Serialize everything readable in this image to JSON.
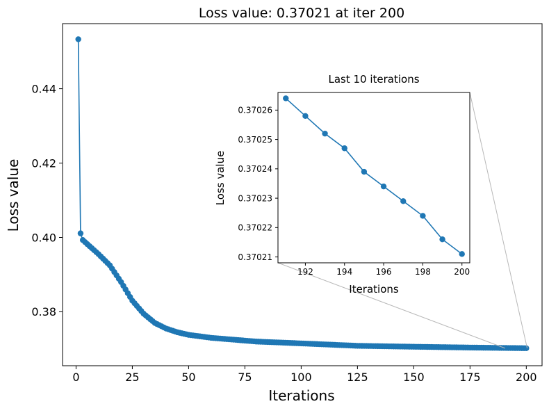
{
  "chart_data": [
    {
      "type": "line",
      "title": "Loss value: 0.37021 at iter 200",
      "xlabel": "Iterations",
      "ylabel": "Loss value",
      "xlim": [
        -6,
        207
      ],
      "ylim": [
        0.3655,
        0.4575
      ],
      "xticks": [
        0,
        25,
        50,
        75,
        100,
        125,
        150,
        175,
        200
      ],
      "yticks": [
        0.38,
        0.4,
        0.42,
        0.44
      ],
      "ytick_labels": [
        "0.38",
        "0.40",
        "0.42",
        "0.44"
      ],
      "color": "#1f77b4",
      "marker": "circle",
      "grid": false,
      "key_points": [
        [
          1,
          0.4533
        ],
        [
          2,
          0.4011
        ],
        [
          3,
          0.3993
        ],
        [
          5,
          0.3982
        ],
        [
          10,
          0.3955
        ],
        [
          15,
          0.3925
        ],
        [
          20,
          0.388
        ],
        [
          25,
          0.383
        ],
        [
          30,
          0.3795
        ],
        [
          35,
          0.377
        ],
        [
          40,
          0.3755
        ],
        [
          45,
          0.3745
        ],
        [
          50,
          0.3738
        ],
        [
          60,
          0.373
        ],
        [
          70,
          0.3725
        ],
        [
          80,
          0.372
        ],
        [
          100,
          0.3715
        ],
        [
          125,
          0.37085
        ],
        [
          150,
          0.3706
        ],
        [
          175,
          0.37038
        ],
        [
          200,
          0.37021
        ]
      ]
    },
    {
      "type": "line",
      "title": "Last 10 iterations",
      "xlabel": "Iterations",
      "ylabel": "Loss value",
      "xlim": [
        190.6,
        200.4
      ],
      "ylim": [
        0.370208,
        0.370266
      ],
      "xticks": [
        192,
        194,
        196,
        198,
        200
      ],
      "yticks": [
        0.37021,
        0.37022,
        0.37023,
        0.37024,
        0.37025,
        0.37026
      ],
      "ytick_labels": [
        "0.37021",
        "0.37022",
        "0.37023",
        "0.37024",
        "0.37025",
        "0.37026"
      ],
      "color": "#1f77b4",
      "marker": "circle",
      "x": [
        191,
        192,
        193,
        194,
        195,
        196,
        197,
        198,
        199,
        200
      ],
      "values": [
        0.370264,
        0.370258,
        0.370252,
        0.370247,
        0.370239,
        0.370234,
        0.370229,
        0.370224,
        0.370216,
        0.370211
      ]
    }
  ]
}
